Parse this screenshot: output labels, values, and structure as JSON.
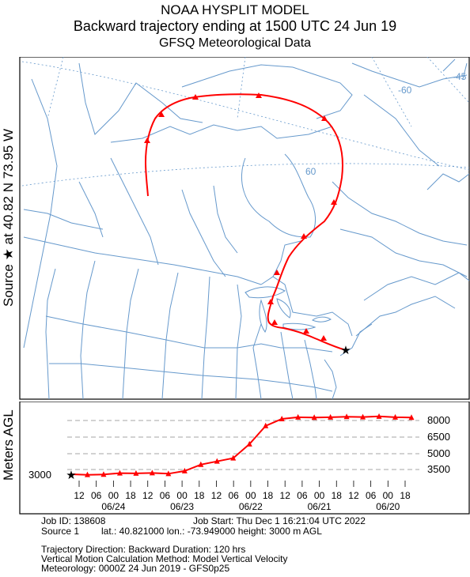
{
  "header": {
    "title": "NOAA HYSPLIT MODEL",
    "subtitle": "Backward trajectory ending at 1500 UTC 24 Jun 19",
    "data_source": "GFSQ Meteorological Data"
  },
  "map": {
    "side_label": "Source ★ at  40.82 N  73.95 W",
    "latitude_labels": [
      "60"
    ],
    "longitude_labels": [
      "-60",
      "-45"
    ],
    "trajectory_color": "#ff0000",
    "map_line_color": "#6699cc"
  },
  "height_panel": {
    "ylabel": "Meters AGL",
    "start_height_label": "3000",
    "right_labels": [
      "8000",
      "6500",
      "5000",
      "3500"
    ],
    "hour_ticks": [
      "12",
      "06",
      "00",
      "18",
      "12",
      "06",
      "00",
      "18",
      "12",
      "06",
      "00",
      "18",
      "12",
      "06",
      "00",
      "18",
      "12",
      "06",
      "00",
      "18"
    ],
    "date_labels": [
      "06/24",
      "06/23",
      "06/22",
      "06/21",
      "06/20"
    ]
  },
  "chart_data": {
    "type": "line",
    "title": "",
    "xlabel": "",
    "ylabel": "Meters AGL",
    "x": [
      "06/24 15",
      "06/24 12",
      "06/24 06",
      "06/24 00",
      "06/23 18",
      "06/23 12",
      "06/23 06",
      "06/23 00",
      "06/22 18",
      "06/22 12",
      "06/22 06",
      "06/22 00",
      "06/21 18",
      "06/21 12",
      "06/21 06",
      "06/21 00",
      "06/20 18",
      "06/20 12",
      "06/20 06",
      "06/20 00",
      "06/19 18",
      "06/19 15"
    ],
    "series": [
      {
        "values": [
          3000,
          2950,
          2980,
          3100,
          3080,
          3120,
          3050,
          3300,
          3900,
          4200,
          4500,
          5800,
          7500,
          8150,
          8300,
          8280,
          8300,
          8350,
          8320,
          8380,
          8300,
          8280
        ]
      }
    ]
  },
  "info": {
    "line1a": "Job ID: 138608",
    "line1b": "Job Start: Thu Dec  1 16:21:04 UTC 2022",
    "line2a": "Source 1",
    "line2b": "lat.: 40.821000    lon.: -73.949000    height: 3000 m AGL",
    "line3": "Trajectory Direction: Backward      Duration: 120 hrs",
    "line4": "Vertical Motion Calculation Method:       Model Vertical Velocity",
    "line5": "Meteorology: 0000Z 24 Jun 2019 - GFS0p25"
  }
}
